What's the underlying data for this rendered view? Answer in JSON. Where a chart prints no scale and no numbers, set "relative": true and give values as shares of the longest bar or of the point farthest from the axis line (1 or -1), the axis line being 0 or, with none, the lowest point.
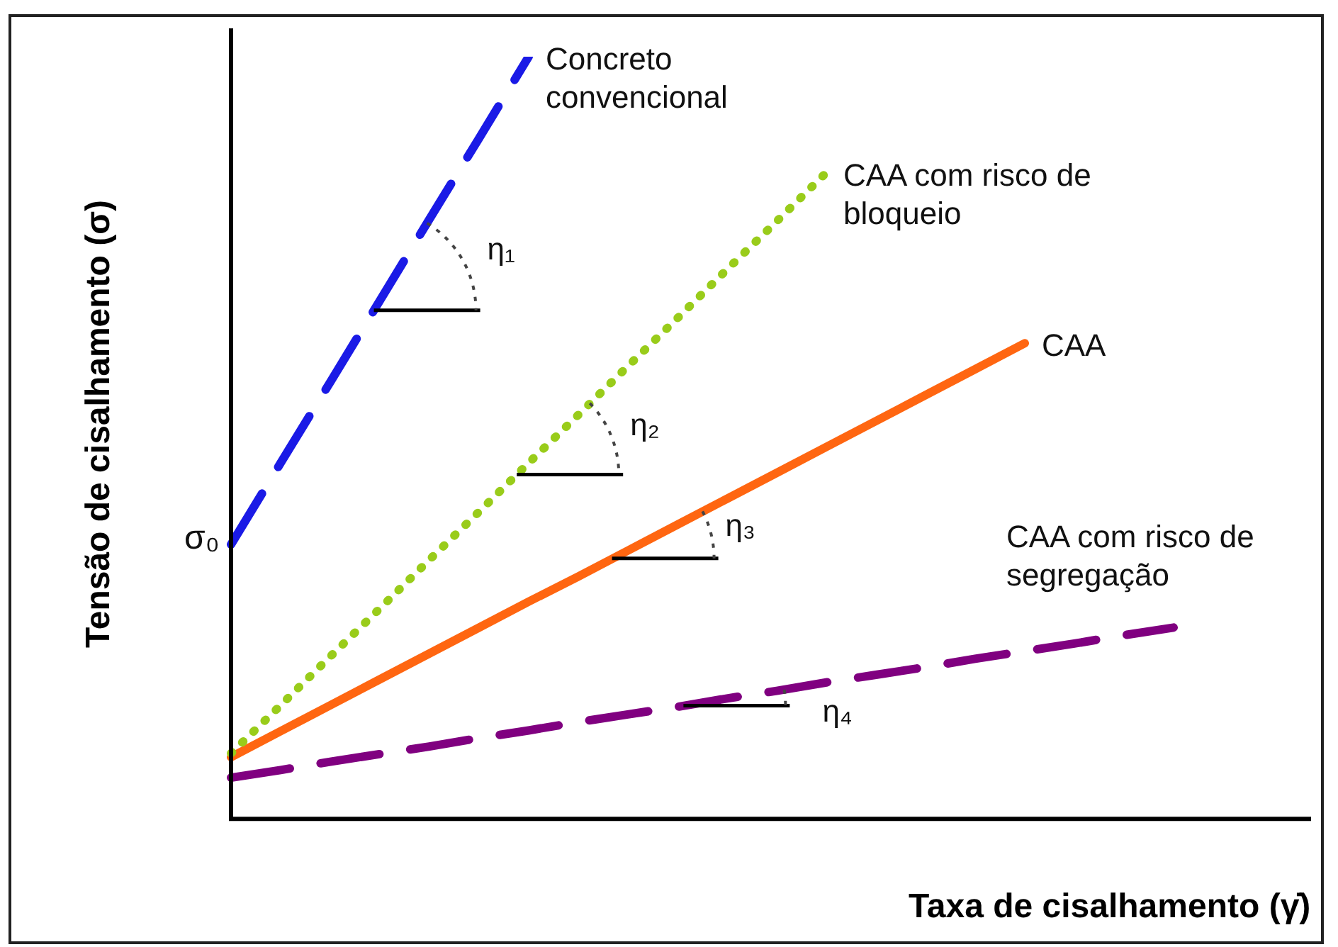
{
  "chart_data": {
    "type": "line",
    "relative": true,
    "xlabel": "Taxa de cisalhamento (γ̇)",
    "ylabel": "Tensão de cisalhamento (σ)",
    "categories": [
      null,
      null,
      null,
      null,
      null,
      null,
      null,
      null,
      null,
      null,
      null,
      null,
      null,
      null,
      null,
      null,
      null,
      null,
      null,
      null,
      null,
      null
    ],
    "series": [
      {
        "name": "Concreto convencional",
        "color": "#1a1ae6",
        "line_style": "dashed",
        "values": [
          0.36,
          0.467,
          0.573,
          0.68,
          0.787,
          0.893,
          1,
          null,
          null,
          null,
          null,
          null,
          null,
          null,
          null,
          null,
          null,
          null,
          null,
          null,
          null,
          null
        ]
      },
      {
        "name": "CAA com risco de bloqueio",
        "color": "#99cc1a",
        "line_style": "dotted",
        "values": [
          0.086,
          0.149,
          0.213,
          0.276,
          0.34,
          0.403,
          0.467,
          0.53,
          0.594,
          0.657,
          0.721,
          0.784,
          0.848,
          null,
          null,
          null,
          null,
          null,
          null,
          null,
          null,
          null
        ]
      },
      {
        "name": "CAA",
        "color": "#ff6611",
        "line_style": "solid",
        "values": [
          0.081,
          0.115,
          0.149,
          0.183,
          0.217,
          0.251,
          0.285,
          0.318,
          0.352,
          0.386,
          0.42,
          0.454,
          0.488,
          0.522,
          0.556,
          0.59,
          0.624,
          null,
          null,
          null,
          null,
          null
        ]
      },
      {
        "name": "CAA com risco de segregação",
        "color": "#800080",
        "line_style": "dashed",
        "values": [
          0.054,
          0.064,
          0.075,
          0.085,
          0.095,
          0.106,
          0.116,
          0.127,
          0.137,
          0.147,
          0.158,
          0.168,
          0.179,
          0.189,
          0.199,
          0.21,
          0.22,
          0.23,
          0.241,
          0.251,
          null,
          null
        ]
      }
    ],
    "annotations": [
      "σ₀",
      "η₁",
      "η₂",
      "η₃",
      "η₄"
    ],
    "grid": false,
    "legend": false,
    "marker": "none"
  }
}
